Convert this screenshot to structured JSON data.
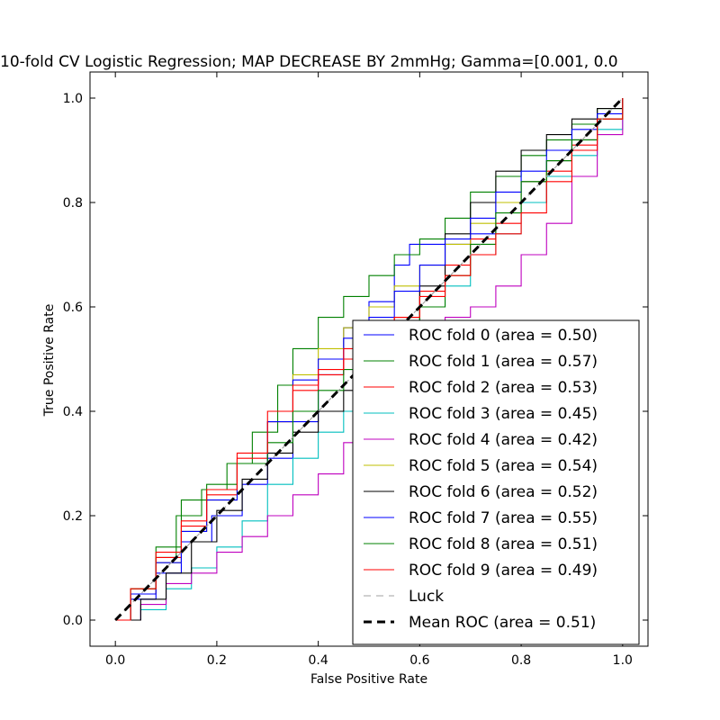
{
  "chart_data": {
    "type": "line",
    "title": "10-fold CV Logistic Regression; MAP DECREASE BY 2mmHg; Gamma=[0.001, 0.0",
    "xlabel": "False Positive Rate",
    "ylabel": "True Positive Rate",
    "xlim": [
      -0.05,
      1.05
    ],
    "ylim": [
      -0.05,
      1.05
    ],
    "xticks": [
      "0.0",
      "0.2",
      "0.4",
      "0.6",
      "0.8",
      "1.0"
    ],
    "yticks": [
      "0.0",
      "0.2",
      "0.4",
      "0.6",
      "0.8",
      "1.0"
    ],
    "grid": false,
    "legend_position": "lower-right",
    "series": [
      {
        "name": "ROC fold 0 (area = 0.50)",
        "color": "#0000ff",
        "style": "solid",
        "x": [
          0,
          0.03,
          0.08,
          0.13,
          0.19,
          0.25,
          0.3,
          0.35,
          0.4,
          0.45,
          0.5,
          0.55,
          0.58,
          0.62,
          0.65,
          0.7,
          0.75,
          0.8,
          0.85,
          0.9,
          0.95,
          1.0
        ],
        "y": [
          0,
          0.04,
          0.09,
          0.15,
          0.2,
          0.26,
          0.31,
          0.38,
          0.47,
          0.56,
          0.61,
          0.68,
          0.72,
          0.72,
          0.72,
          0.74,
          0.8,
          0.84,
          0.88,
          0.92,
          0.96,
          1.0
        ]
      },
      {
        "name": "ROC fold 1 (area = 0.57)",
        "color": "#008000",
        "style": "solid",
        "x": [
          0,
          0.03,
          0.08,
          0.12,
          0.17,
          0.22,
          0.27,
          0.32,
          0.35,
          0.4,
          0.45,
          0.5,
          0.55,
          0.6,
          0.65,
          0.7,
          0.75,
          0.8,
          0.85,
          0.9,
          0.95,
          1.0
        ],
        "y": [
          0,
          0.06,
          0.12,
          0.2,
          0.25,
          0.3,
          0.36,
          0.45,
          0.52,
          0.58,
          0.62,
          0.66,
          0.7,
          0.73,
          0.77,
          0.82,
          0.85,
          0.89,
          0.92,
          0.95,
          0.98,
          1.0
        ]
      },
      {
        "name": "ROC fold 2 (area = 0.53)",
        "color": "#ff0000",
        "style": "solid",
        "x": [
          0,
          0.03,
          0.08,
          0.13,
          0.18,
          0.24,
          0.3,
          0.35,
          0.4,
          0.45,
          0.5,
          0.55,
          0.6,
          0.65,
          0.7,
          0.75,
          0.8,
          0.85,
          0.9,
          0.95,
          1.0
        ],
        "y": [
          0,
          0.05,
          0.12,
          0.18,
          0.24,
          0.31,
          0.38,
          0.44,
          0.47,
          0.5,
          0.53,
          0.58,
          0.63,
          0.68,
          0.73,
          0.76,
          0.8,
          0.86,
          0.91,
          0.96,
          1.0
        ]
      },
      {
        "name": "ROC fold 3 (area = 0.45)",
        "color": "#00bfbf",
        "style": "solid",
        "x": [
          0,
          0.05,
          0.1,
          0.15,
          0.2,
          0.25,
          0.3,
          0.35,
          0.4,
          0.45,
          0.5,
          0.55,
          0.6,
          0.65,
          0.7,
          0.75,
          0.8,
          0.85,
          0.9,
          0.95,
          1.0
        ],
        "y": [
          0,
          0.02,
          0.06,
          0.1,
          0.14,
          0.19,
          0.26,
          0.31,
          0.36,
          0.4,
          0.48,
          0.54,
          0.6,
          0.64,
          0.7,
          0.74,
          0.8,
          0.85,
          0.89,
          0.94,
          1.0
        ]
      },
      {
        "name": "ROC fold 4 (area = 0.42)",
        "color": "#bf00bf",
        "style": "solid",
        "x": [
          0,
          0.05,
          0.1,
          0.15,
          0.2,
          0.25,
          0.3,
          0.35,
          0.4,
          0.45,
          0.5,
          0.55,
          0.6,
          0.65,
          0.7,
          0.75,
          0.8,
          0.85,
          0.9,
          0.95,
          1.0
        ],
        "y": [
          0,
          0.03,
          0.07,
          0.09,
          0.13,
          0.16,
          0.2,
          0.24,
          0.28,
          0.34,
          0.42,
          0.5,
          0.55,
          0.58,
          0.6,
          0.64,
          0.7,
          0.76,
          0.85,
          0.93,
          1.0
        ]
      },
      {
        "name": "ROC fold 5 (area = 0.54)",
        "color": "#bfbf00",
        "style": "solid",
        "x": [
          0,
          0.03,
          0.08,
          0.13,
          0.18,
          0.24,
          0.3,
          0.35,
          0.4,
          0.45,
          0.5,
          0.55,
          0.6,
          0.65,
          0.7,
          0.75,
          0.8,
          0.85,
          0.9,
          0.95,
          1.0
        ],
        "y": [
          0,
          0.05,
          0.11,
          0.17,
          0.23,
          0.3,
          0.38,
          0.47,
          0.52,
          0.56,
          0.6,
          0.64,
          0.68,
          0.72,
          0.76,
          0.8,
          0.84,
          0.88,
          0.92,
          0.96,
          1.0
        ]
      },
      {
        "name": "ROC fold 6 (area = 0.52)",
        "color": "#000000",
        "style": "solid",
        "x": [
          0,
          0.05,
          0.1,
          0.15,
          0.2,
          0.25,
          0.3,
          0.35,
          0.4,
          0.45,
          0.5,
          0.55,
          0.6,
          0.65,
          0.7,
          0.75,
          0.8,
          0.85,
          0.9,
          0.95,
          1.0
        ],
        "y": [
          0,
          0.04,
          0.09,
          0.15,
          0.21,
          0.27,
          0.32,
          0.36,
          0.4,
          0.44,
          0.5,
          0.56,
          0.64,
          0.74,
          0.8,
          0.86,
          0.9,
          0.93,
          0.96,
          0.98,
          1.0
        ]
      },
      {
        "name": "ROC fold 7 (area = 0.55)",
        "color": "#0000ff",
        "style": "solid",
        "x": [
          0,
          0.03,
          0.08,
          0.13,
          0.18,
          0.24,
          0.3,
          0.35,
          0.4,
          0.45,
          0.5,
          0.55,
          0.6,
          0.65,
          0.7,
          0.75,
          0.8,
          0.85,
          0.9,
          0.95,
          1.0
        ],
        "y": [
          0,
          0.05,
          0.11,
          0.17,
          0.23,
          0.3,
          0.38,
          0.46,
          0.5,
          0.54,
          0.58,
          0.63,
          0.68,
          0.73,
          0.77,
          0.82,
          0.86,
          0.9,
          0.94,
          0.97,
          1.0
        ]
      },
      {
        "name": "ROC fold 8 (area = 0.51)",
        "color": "#008000",
        "style": "solid",
        "x": [
          0,
          0.03,
          0.08,
          0.13,
          0.18,
          0.24,
          0.3,
          0.35,
          0.4,
          0.45,
          0.5,
          0.55,
          0.6,
          0.65,
          0.7,
          0.75,
          0.8,
          0.85,
          0.9,
          0.95,
          1.0
        ],
        "y": [
          0,
          0.06,
          0.14,
          0.23,
          0.26,
          0.3,
          0.34,
          0.4,
          0.44,
          0.48,
          0.52,
          0.56,
          0.6,
          0.66,
          0.72,
          0.78,
          0.84,
          0.88,
          0.92,
          0.96,
          1.0
        ]
      },
      {
        "name": "ROC fold 9 (area = 0.49)",
        "color": "#ff0000",
        "style": "solid",
        "x": [
          0,
          0.03,
          0.08,
          0.13,
          0.18,
          0.24,
          0.3,
          0.35,
          0.4,
          0.45,
          0.5,
          0.55,
          0.6,
          0.65,
          0.7,
          0.75,
          0.8,
          0.85,
          0.9,
          0.95,
          1.0
        ],
        "y": [
          0,
          0.06,
          0.13,
          0.19,
          0.25,
          0.32,
          0.4,
          0.45,
          0.48,
          0.52,
          0.55,
          0.58,
          0.62,
          0.66,
          0.7,
          0.74,
          0.78,
          0.84,
          0.9,
          0.96,
          1.0
        ]
      },
      {
        "name": "Luck",
        "color": "#a0a0a0",
        "style": "dashed",
        "x": [
          0,
          1
        ],
        "y": [
          0,
          1
        ]
      },
      {
        "name": "Mean ROC (area = 0.51)",
        "color": "#000000",
        "style": "bold-dashed",
        "x": [
          0,
          0.1,
          0.2,
          0.3,
          0.4,
          0.5,
          0.6,
          0.7,
          0.8,
          0.9,
          1.0
        ],
        "y": [
          0,
          0.1,
          0.2,
          0.3,
          0.4,
          0.5,
          0.6,
          0.7,
          0.8,
          0.9,
          1.0
        ]
      }
    ]
  }
}
